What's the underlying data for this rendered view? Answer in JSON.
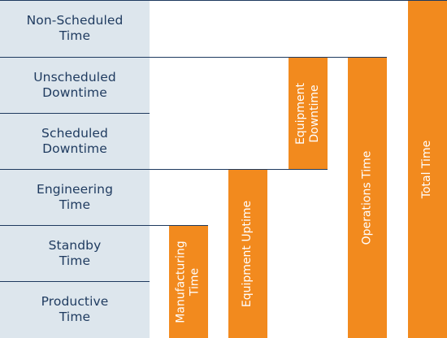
{
  "categories": [
    {
      "id": "non-scheduled",
      "label": "Non-Scheduled\nTime"
    },
    {
      "id": "unscheduled-downtime",
      "label": "Unscheduled\nDowntime"
    },
    {
      "id": "scheduled-downtime",
      "label": "Scheduled\nDowntime"
    },
    {
      "id": "engineering",
      "label": "Engineering\nTime"
    },
    {
      "id": "standby",
      "label": "Standby\nTime"
    },
    {
      "id": "productive",
      "label": "Productive\nTime"
    }
  ],
  "bars": [
    {
      "id": "manufacturing-time",
      "label": "Manufacturing\nTime",
      "spans": [
        "productive",
        "standby"
      ]
    },
    {
      "id": "equipment-uptime",
      "label": "Equipment Uptime",
      "spans": [
        "productive",
        "standby",
        "engineering"
      ]
    },
    {
      "id": "equipment-downtime",
      "label": "Equipment\nDowntime",
      "spans": [
        "scheduled-downtime",
        "unscheduled-downtime"
      ]
    },
    {
      "id": "operations-time",
      "label": "Operations Time",
      "spans": [
        "productive",
        "standby",
        "engineering",
        "scheduled-downtime",
        "unscheduled-downtime"
      ]
    },
    {
      "id": "total-time",
      "label": "Total Time",
      "spans": [
        "productive",
        "standby",
        "engineering",
        "scheduled-downtime",
        "unscheduled-downtime",
        "non-scheduled"
      ]
    }
  ],
  "colors": {
    "bar": "#f28a1e",
    "category_bg": "#dde6ed",
    "line": "#1e3a5f",
    "text": "#1e3a5f"
  }
}
